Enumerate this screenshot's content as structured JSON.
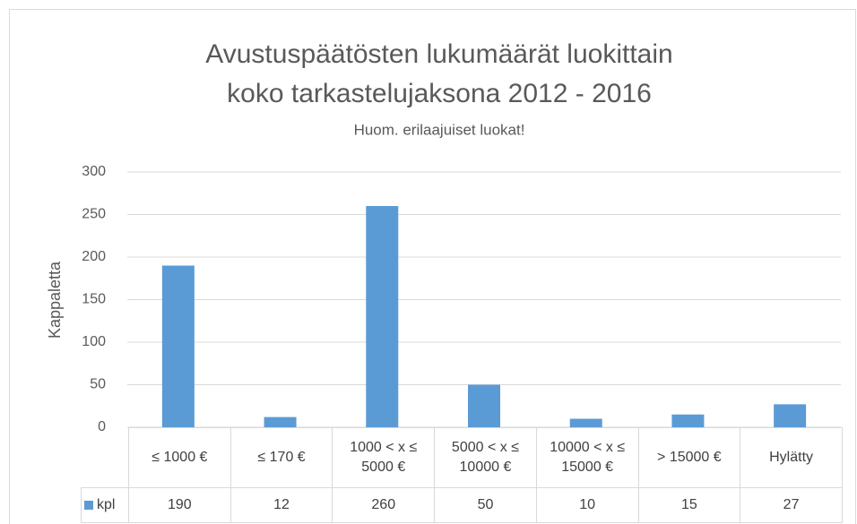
{
  "chart_data": {
    "type": "bar",
    "title": [
      "Avustuspäätösten lukumäärät luokittain",
      "koko tarkastelujaksona 2012 - 2016"
    ],
    "subtitle": "Huom. erilaajuiset luokat!",
    "y_label": "Kappaletta",
    "categories": [
      "≤ 1000 €",
      "≤ 170 €",
      "1000 < x ≤ 5000 €",
      "5000 < x ≤ 10000 €",
      "10000 < x ≤ 15000 €",
      "> 15000 €",
      "Hylätty"
    ],
    "series": [
      {
        "name": "kpl",
        "color": "#5b9bd5",
        "values": [
          190,
          12,
          260,
          50,
          10,
          15,
          27
        ]
      }
    ],
    "ylim": [
      0,
      300
    ],
    "yticks": [
      0,
      50,
      100,
      150,
      200,
      250,
      300
    ],
    "grid": true
  }
}
